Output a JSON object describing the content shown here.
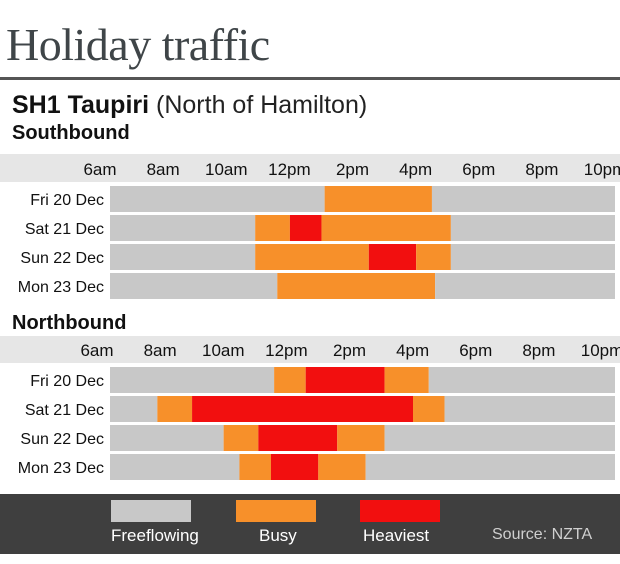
{
  "title": "Holiday traffic",
  "road": {
    "name": "SH1 Taupiri",
    "location": "(North of Hamilton)"
  },
  "colors": {
    "freeflowing": "#c8c8c8",
    "busy": "#f7902a",
    "heaviest": "#f20f0f",
    "header_band": "#e6e6e6",
    "legend_bg": "#3f3f3f"
  },
  "legend": {
    "freeflowing": "Freeflowing",
    "busy": "Busy",
    "heaviest": "Heaviest"
  },
  "source": "Source: NZTA",
  "chart_data": [
    {
      "type": "timeline",
      "title": "Southbound",
      "x_ticks": [
        "6am",
        "8am",
        "10am",
        "12pm",
        "2pm",
        "4pm",
        "6pm",
        "8pm",
        "10pm"
      ],
      "x_unit": "hour",
      "xlim": [
        6,
        22
      ],
      "rows": [
        {
          "label": "Fri 20 Dec",
          "segments": [
            {
              "start": 6,
              "end": 12.8,
              "level": "freeflowing"
            },
            {
              "start": 12.8,
              "end": 16.2,
              "level": "busy"
            },
            {
              "start": 16.2,
              "end": 22,
              "level": "freeflowing"
            }
          ]
        },
        {
          "label": "Sat 21 Dec",
          "segments": [
            {
              "start": 6,
              "end": 10.6,
              "level": "freeflowing"
            },
            {
              "start": 10.6,
              "end": 11.7,
              "level": "busy"
            },
            {
              "start": 11.7,
              "end": 12.7,
              "level": "heaviest"
            },
            {
              "start": 12.7,
              "end": 16.8,
              "level": "busy"
            },
            {
              "start": 16.8,
              "end": 22,
              "level": "freeflowing"
            }
          ]
        },
        {
          "label": "Sun 22 Dec",
          "segments": [
            {
              "start": 6,
              "end": 10.6,
              "level": "freeflowing"
            },
            {
              "start": 10.6,
              "end": 14.2,
              "level": "busy"
            },
            {
              "start": 14.2,
              "end": 15.7,
              "level": "heaviest"
            },
            {
              "start": 15.7,
              "end": 16.8,
              "level": "busy"
            },
            {
              "start": 16.8,
              "end": 22,
              "level": "freeflowing"
            }
          ]
        },
        {
          "label": "Mon 23 Dec",
          "segments": [
            {
              "start": 6,
              "end": 11.3,
              "level": "freeflowing"
            },
            {
              "start": 11.3,
              "end": 16.3,
              "level": "busy"
            },
            {
              "start": 16.3,
              "end": 22,
              "level": "freeflowing"
            }
          ]
        }
      ]
    },
    {
      "type": "timeline",
      "title": "Northbound",
      "x_ticks": [
        "6am",
        "8am",
        "10am",
        "12pm",
        "2pm",
        "4pm",
        "6pm",
        "8pm",
        "10pm"
      ],
      "x_unit": "hour",
      "xlim": [
        6,
        22
      ],
      "rows": [
        {
          "label": "Fri 20 Dec",
          "segments": [
            {
              "start": 6,
              "end": 11.2,
              "level": "freeflowing"
            },
            {
              "start": 11.2,
              "end": 12.2,
              "level": "busy"
            },
            {
              "start": 12.2,
              "end": 14.7,
              "level": "heaviest"
            },
            {
              "start": 14.7,
              "end": 16.1,
              "level": "busy"
            },
            {
              "start": 16.1,
              "end": 22,
              "level": "freeflowing"
            }
          ]
        },
        {
          "label": "Sat 21 Dec",
          "segments": [
            {
              "start": 6,
              "end": 7.5,
              "level": "freeflowing"
            },
            {
              "start": 7.5,
              "end": 8.6,
              "level": "busy"
            },
            {
              "start": 8.6,
              "end": 15.6,
              "level": "heaviest"
            },
            {
              "start": 15.6,
              "end": 16.6,
              "level": "busy"
            },
            {
              "start": 16.6,
              "end": 22,
              "level": "freeflowing"
            }
          ]
        },
        {
          "label": "Sun 22 Dec",
          "segments": [
            {
              "start": 6,
              "end": 9.6,
              "level": "freeflowing"
            },
            {
              "start": 9.6,
              "end": 10.7,
              "level": "busy"
            },
            {
              "start": 10.7,
              "end": 13.2,
              "level": "heaviest"
            },
            {
              "start": 13.2,
              "end": 14.7,
              "level": "busy"
            },
            {
              "start": 14.7,
              "end": 22,
              "level": "freeflowing"
            }
          ]
        },
        {
          "label": "Mon 23 Dec",
          "segments": [
            {
              "start": 6,
              "end": 10.1,
              "level": "freeflowing"
            },
            {
              "start": 10.1,
              "end": 11.1,
              "level": "busy"
            },
            {
              "start": 11.1,
              "end": 12.6,
              "level": "heaviest"
            },
            {
              "start": 12.6,
              "end": 14.1,
              "level": "busy"
            },
            {
              "start": 14.1,
              "end": 22,
              "level": "freeflowing"
            }
          ]
        }
      ]
    }
  ]
}
